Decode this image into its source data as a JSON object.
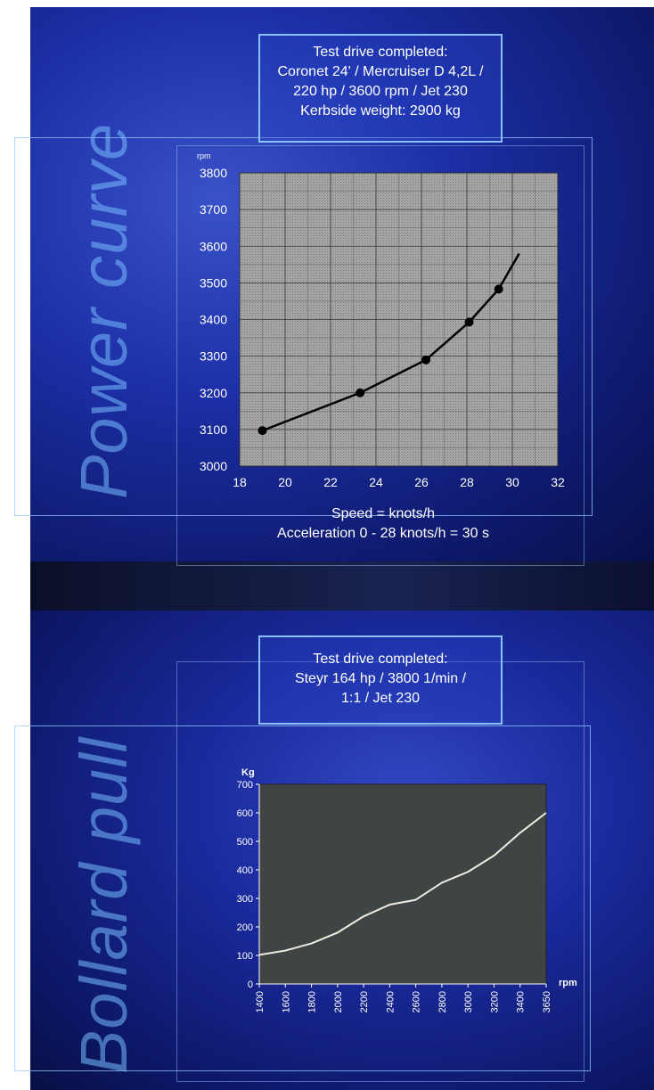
{
  "top": {
    "vertical_title": "Power curve",
    "info_lines": [
      "Test drive completed:",
      "Coronet 24' / Mercruiser D 4,2L /",
      "220 hp / 3600 rpm / Jet 230",
      "Kerbside weight: 2900 kg"
    ],
    "caption_lines": [
      "Speed = knots/h",
      "Acceleration 0 - 28 knots/h = 30 s"
    ]
  },
  "bottom": {
    "vertical_title": "Bollard pull",
    "info_lines": [
      "Test drive completed:",
      "Steyr 164 hp / 3800 1/min /",
      "1:1 / Jet 230"
    ]
  },
  "chart_data": [
    {
      "type": "line",
      "title": "",
      "xlabel": "",
      "ylabel": "rpm",
      "xlim": [
        18,
        32
      ],
      "ylim": [
        3000,
        3800
      ],
      "x_ticks": [
        18,
        20,
        22,
        24,
        26,
        28,
        30,
        32
      ],
      "y_ticks": [
        3000,
        3100,
        3200,
        3300,
        3400,
        3500,
        3600,
        3700,
        3800
      ],
      "grid": true,
      "plot_background": "#9a9a9a",
      "line_color": "#000000",
      "series": [
        {
          "x": [
            19,
            23.3,
            26.2,
            28.1,
            29.4,
            30.3
          ],
          "values": [
            3097,
            3200,
            3290,
            3393,
            3483,
            3580
          ],
          "markers": [
            true,
            true,
            true,
            true,
            true,
            false
          ]
        }
      ]
    },
    {
      "type": "line",
      "title": "",
      "xlabel": "rpm",
      "ylabel": "Kg",
      "categories": [
        "1400",
        "1600",
        "1800",
        "2000",
        "2200",
        "2400",
        "2600",
        "2800",
        "3000",
        "3200",
        "3400",
        "3650"
      ],
      "ylim": [
        0,
        700
      ],
      "y_ticks": [
        0,
        100,
        200,
        300,
        400,
        500,
        600,
        700
      ],
      "grid": false,
      "plot_background": "#3f4545",
      "line_color": "#f0ece0",
      "series": [
        {
          "values": [
            102,
            117,
            142,
            180,
            237,
            278,
            295,
            355,
            393,
            450,
            530,
            600
          ]
        }
      ]
    }
  ]
}
